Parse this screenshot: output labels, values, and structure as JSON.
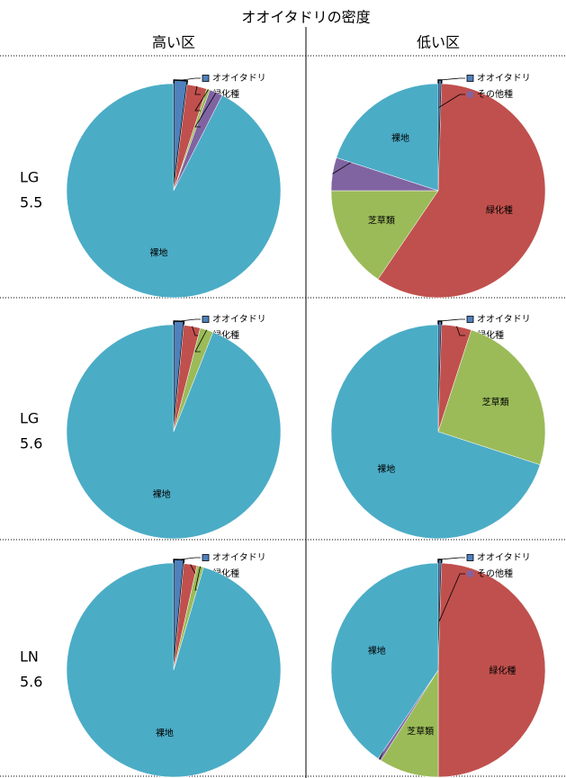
{
  "figure": {
    "title": "オオイタドリの密度",
    "columns": [
      "高い区",
      "低い区"
    ],
    "rows": [
      [
        "LG",
        "5.5"
      ],
      [
        "LG",
        "5.6"
      ],
      [
        "LN",
        "5.6"
      ]
    ]
  },
  "chart_data": [
    {
      "type": "pie",
      "categories": [
        "オオイタドリ",
        "緑化種",
        "芝草類",
        "その他種",
        "裸地"
      ],
      "values": [
        2,
        3,
        0.5,
        2,
        92.5
      ],
      "colors": [
        "#4f81bd",
        "#c0504d",
        "#9bbb59",
        "#8064a2",
        "#4bacc6"
      ]
    },
    {
      "type": "pie",
      "categories": [
        "オオイタドリ",
        "緑化種",
        "芝草類",
        "その他種",
        "裸地"
      ],
      "values": [
        0.5,
        59,
        15.5,
        5,
        20
      ],
      "colors": [
        "#4f81bd",
        "#c0504d",
        "#9bbb59",
        "#8064a2",
        "#4bacc6"
      ]
    },
    {
      "type": "pie",
      "categories": [
        "オオイタドリ",
        "緑化種",
        "芝草類",
        "裸地"
      ],
      "values": [
        1.5,
        2.5,
        2,
        94
      ],
      "colors": [
        "#4f81bd",
        "#c0504d",
        "#9bbb59",
        "#4bacc6"
      ]
    },
    {
      "type": "pie",
      "categories": [
        "オオイタドリ",
        "緑化種",
        "芝草類",
        "裸地"
      ],
      "values": [
        0.5,
        4.5,
        25,
        70
      ],
      "colors": [
        "#4f81bd",
        "#c0504d",
        "#9bbb59",
        "#4bacc6"
      ]
    },
    {
      "type": "pie",
      "categories": [
        "オオイタドリ",
        "緑化種",
        "芝草類",
        "裸地"
      ],
      "values": [
        1.5,
        2,
        1,
        95.5
      ],
      "colors": [
        "#4f81bd",
        "#c0504d",
        "#9bbb59",
        "#4bacc6"
      ]
    },
    {
      "type": "pie",
      "categories": [
        "オオイタドリ",
        "緑化種",
        "芝草類",
        "その他種",
        "裸地"
      ],
      "values": [
        0.5,
        49.5,
        9,
        0.5,
        40.5
      ],
      "colors": [
        "#4f81bd",
        "#c0504d",
        "#9bbb59",
        "#8064a2",
        "#4bacc6"
      ]
    }
  ]
}
